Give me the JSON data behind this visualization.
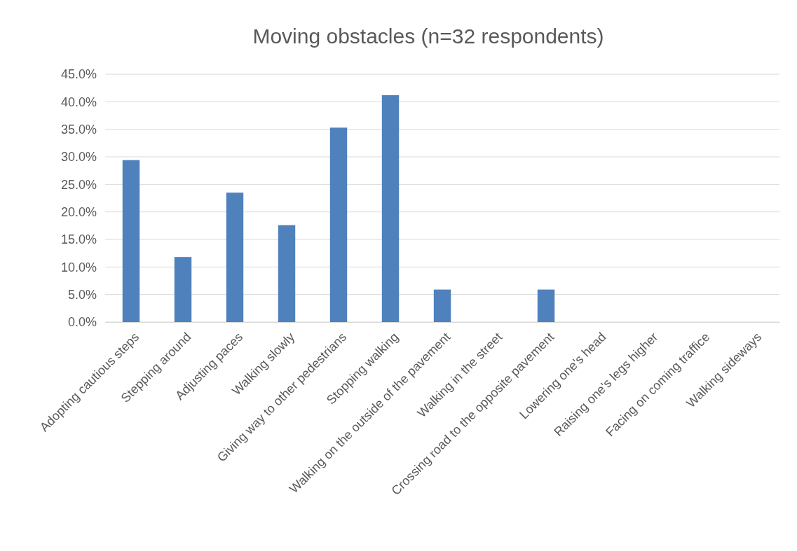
{
  "chart_data": {
    "type": "bar",
    "title": "Moving obstacles (n=32 respondents)",
    "categories": [
      "Adopting cautious steps",
      "Stepping around",
      "Adjusting paces",
      "Walking slowly",
      "Giving way to other pedestrians",
      "Stopping walking",
      "Walking on the outside of the pavement",
      "Walking in the street",
      "Crossing road to the opposite pavement",
      "Lowering one's head",
      "Raising one's legs higher",
      "Facing on coming traffice",
      "Walking sideways"
    ],
    "values": [
      29.4,
      11.8,
      23.5,
      17.6,
      35.3,
      41.2,
      5.9,
      0,
      5.9,
      0,
      0,
      0,
      0
    ],
    "color": "#4f81bd",
    "ylim": [
      0,
      45
    ],
    "yticks": [
      {
        "value": 0,
        "label": "0.0%"
      },
      {
        "value": 5,
        "label": "5.0%"
      },
      {
        "value": 10,
        "label": "10.0%"
      },
      {
        "value": 15,
        "label": "15.0%"
      },
      {
        "value": 20,
        "label": "20.0%"
      },
      {
        "value": 25,
        "label": "25.0%"
      },
      {
        "value": 30,
        "label": "30.0%"
      },
      {
        "value": 35,
        "label": "35.0%"
      },
      {
        "value": 40,
        "label": "40.0%"
      },
      {
        "value": 45,
        "label": "45.0%"
      }
    ],
    "grid": "y"
  }
}
